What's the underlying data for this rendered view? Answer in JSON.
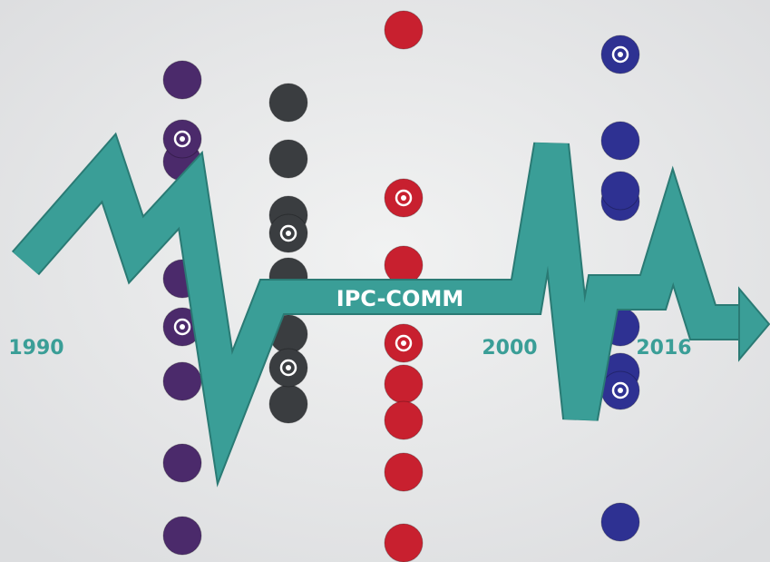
{
  "years": [
    "1990",
    "2000",
    "2016"
  ],
  "label": "IPC-COMM"
}
